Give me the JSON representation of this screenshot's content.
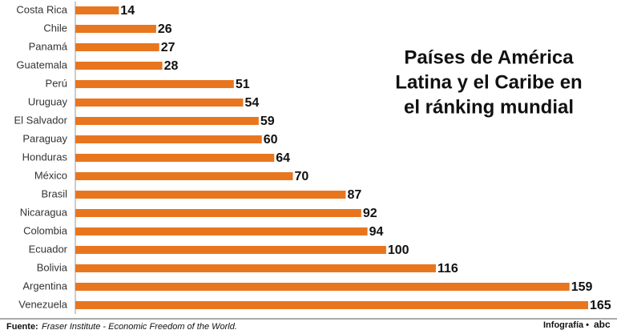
{
  "chart_data": {
    "type": "bar",
    "orientation": "horizontal",
    "title_lines": [
      "Países de América",
      "Latina y el Caribe en",
      "el ránking mundial"
    ],
    "categories": [
      "Costa Rica",
      "Chile",
      "Panamá",
      "Guatemala",
      "Perú",
      "Uruguay",
      "El Salvador",
      "Paraguay",
      "Honduras",
      "México",
      "Brasil",
      "Nicaragua",
      "Colombia",
      "Ecuador",
      "Bolivia",
      "Argentina",
      "Venezuela"
    ],
    "values": [
      14,
      26,
      27,
      28,
      51,
      54,
      59,
      60,
      64,
      70,
      87,
      92,
      94,
      100,
      116,
      159,
      165
    ],
    "color": "#e8761f",
    "source_label": "Fuente:",
    "source": "Fraser Institute - Economic Freedom of the World.",
    "credit": "Infografía •",
    "logo": "abc"
  }
}
